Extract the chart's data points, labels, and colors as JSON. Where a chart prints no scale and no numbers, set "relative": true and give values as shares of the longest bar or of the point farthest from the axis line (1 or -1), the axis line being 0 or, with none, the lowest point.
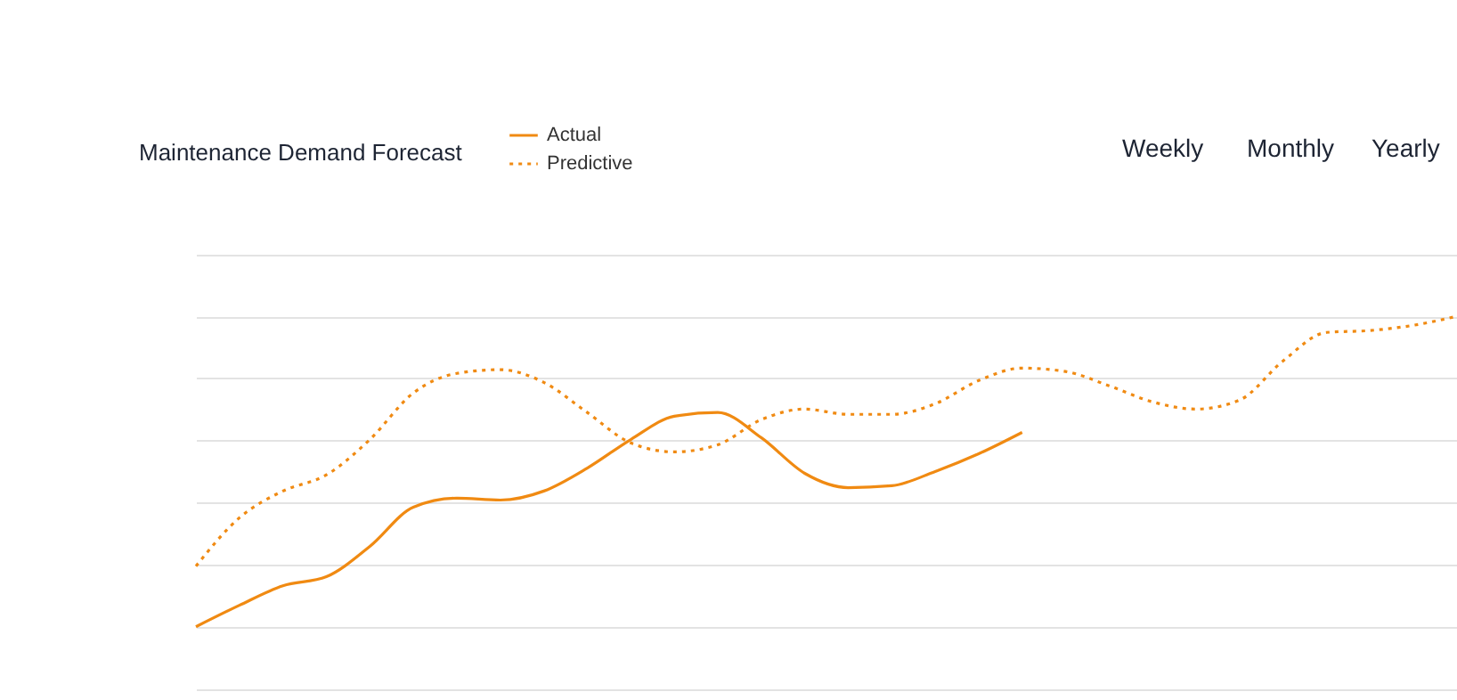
{
  "chart_data": {
    "type": "line",
    "title": "Maintenance Demand Forecast",
    "relative": true,
    "grid": "y",
    "legend": "top left",
    "annotations": [
      "Weekly",
      "Monthly",
      "Yearly"
    ],
    "categories": [
      null,
      null,
      null,
      null,
      null,
      null,
      null,
      null,
      null,
      null,
      null,
      null,
      null,
      null,
      null,
      null,
      null,
      null,
      null,
      null,
      null,
      null,
      null,
      null,
      null,
      null,
      null,
      null,
      null,
      null
    ],
    "series": [
      {
        "name": "Actual",
        "color": "#f08a12",
        "line_style": "solid",
        "values": [
          0,
          0.069,
          0.132,
          0.161,
          0.259,
          0.385,
          0.414,
          0.408,
          0.437,
          0.511,
          0.603,
          0.678,
          0.69,
          0.609,
          0.494,
          0.448,
          0.454,
          0.5,
          0.557,
          0.626,
          null,
          null,
          null,
          null,
          null,
          null,
          null,
          null,
          null,
          null
        ]
      },
      {
        "name": "Predictive",
        "color": "#f08a12",
        "line_style": "dotted",
        "values": [
          0.195,
          0.351,
          0.437,
          0.489,
          0.603,
          0.753,
          0.816,
          0.828,
          0.787,
          0.69,
          0.592,
          0.563,
          0.586,
          0.667,
          0.701,
          0.684,
          0.684,
          0.718,
          0.793,
          0.833,
          0.822,
          0.776,
          0.724,
          0.701,
          0.73,
          0.856,
          0.948,
          0.954,
          0.971,
          1
        ]
      }
    ]
  }
}
